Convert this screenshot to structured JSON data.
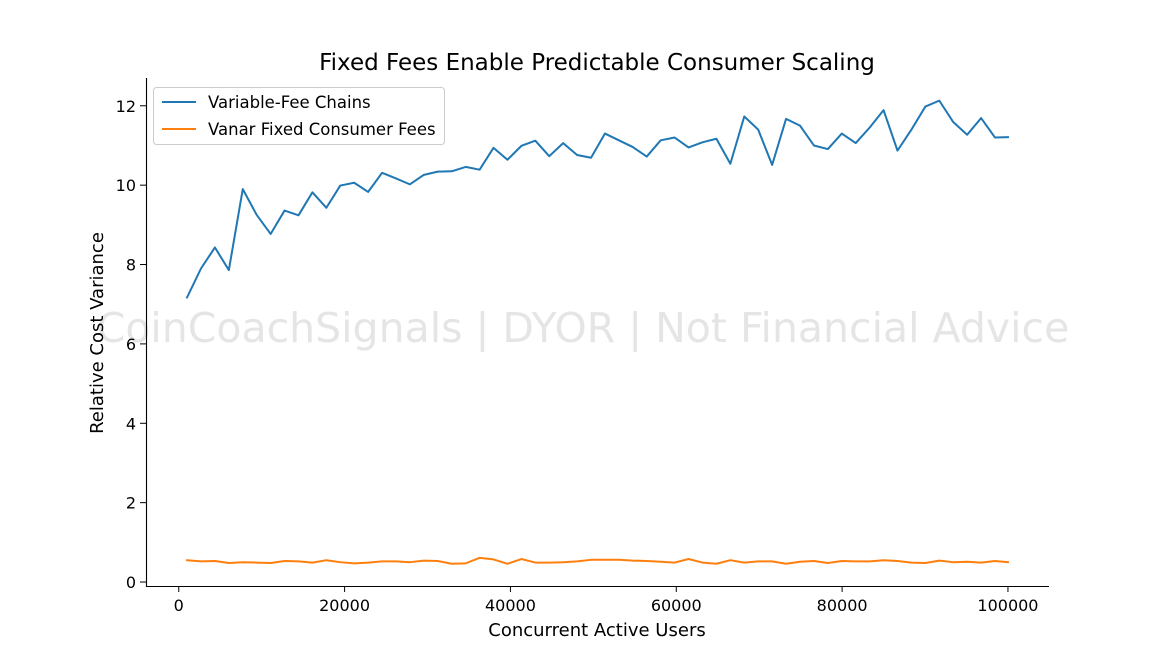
{
  "chart_data": {
    "type": "line",
    "title": "Fixed Fees Enable Predictable Consumer Scaling",
    "xlabel": "Concurrent Active Users",
    "ylabel": "Relative Cost Variance",
    "watermark": "CoinCoachSignals | DYOR | Not Financial Advice",
    "xlim": [
      -3950,
      104950
    ],
    "ylim": [
      -0.1,
      12.7
    ],
    "xticks": [
      0,
      20000,
      40000,
      60000,
      80000,
      100000
    ],
    "xtick_labels": [
      "0",
      "20000",
      "40000",
      "60000",
      "80000",
      "100000"
    ],
    "yticks": [
      0,
      2,
      4,
      6,
      8,
      10,
      12
    ],
    "ytick_labels": [
      "0",
      "2",
      "4",
      "6",
      "8",
      "10",
      "12"
    ],
    "grid": false,
    "legend_position": "top-left",
    "x": [
      1000,
      2680,
      4360,
      6040,
      7720,
      9400,
      11080,
      12760,
      14440,
      16120,
      17800,
      19480,
      21160,
      22840,
      24520,
      26200,
      27880,
      29560,
      31240,
      32920,
      34600,
      36280,
      37960,
      39640,
      41320,
      43000,
      44680,
      46360,
      48040,
      49720,
      51400,
      53080,
      54760,
      56440,
      58120,
      59800,
      61480,
      63160,
      64840,
      66520,
      68200,
      69880,
      71560,
      73240,
      74920,
      76600,
      78280,
      79960,
      81640,
      83320,
      85000,
      86680,
      88360,
      90040,
      91720,
      93400,
      95080,
      96760,
      98440,
      100000
    ],
    "series": [
      {
        "name": "Variable-Fee Chains",
        "color": "#1f77b4",
        "values": [
          7.17,
          7.9,
          8.43,
          7.86,
          9.9,
          9.25,
          8.77,
          9.36,
          9.24,
          9.82,
          9.43,
          9.99,
          10.06,
          9.83,
          10.31,
          10.17,
          10.02,
          10.26,
          10.34,
          10.35,
          10.46,
          10.39,
          10.94,
          10.64,
          10.99,
          11.12,
          10.73,
          11.06,
          10.76,
          10.69,
          11.3,
          11.13,
          10.96,
          10.72,
          11.13,
          11.2,
          10.95,
          11.08,
          11.17,
          10.54,
          11.73,
          11.4,
          10.51,
          11.67,
          11.5,
          11.0,
          10.91,
          11.3,
          11.06,
          11.45,
          11.89,
          10.87,
          11.4,
          11.98,
          12.13,
          11.59,
          11.27,
          11.69,
          11.2,
          11.21
        ]
      },
      {
        "name": "Vanar Fixed Consumer Fees",
        "color": "#ff7f0e",
        "values": [
          0.55,
          0.52,
          0.53,
          0.48,
          0.5,
          0.49,
          0.48,
          0.53,
          0.52,
          0.49,
          0.55,
          0.5,
          0.47,
          0.49,
          0.52,
          0.52,
          0.5,
          0.54,
          0.53,
          0.46,
          0.47,
          0.61,
          0.57,
          0.46,
          0.58,
          0.49,
          0.49,
          0.5,
          0.52,
          0.56,
          0.56,
          0.56,
          0.54,
          0.53,
          0.51,
          0.49,
          0.58,
          0.49,
          0.46,
          0.55,
          0.49,
          0.52,
          0.52,
          0.46,
          0.51,
          0.53,
          0.48,
          0.53,
          0.52,
          0.52,
          0.55,
          0.53,
          0.49,
          0.48,
          0.54,
          0.5,
          0.51,
          0.49,
          0.53,
          0.5
        ]
      }
    ]
  }
}
